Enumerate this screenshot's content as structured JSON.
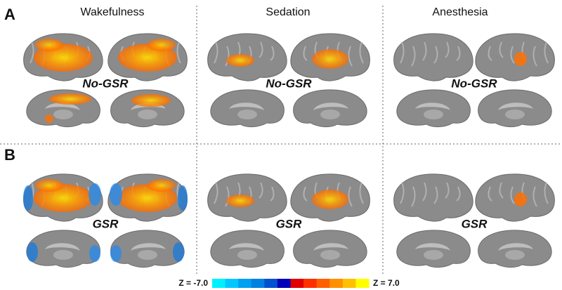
{
  "columns": [
    "Wakefulness",
    "Sedation",
    "Anesthesia"
  ],
  "panels": [
    {
      "label": "A",
      "condition_label": "No-GSR"
    },
    {
      "label": "B",
      "condition_label": "GSR"
    }
  ],
  "colorbar": {
    "min_label": "Z = -7.0",
    "max_label": "Z = 7.0",
    "colors": [
      "#00f0ff",
      "#00c8ff",
      "#00a0f0",
      "#0080e0",
      "#0050d0",
      "#0000b8",
      "#e00000",
      "#ff3000",
      "#ff6000",
      "#ff9000",
      "#ffc000",
      "#ffff00"
    ]
  }
}
